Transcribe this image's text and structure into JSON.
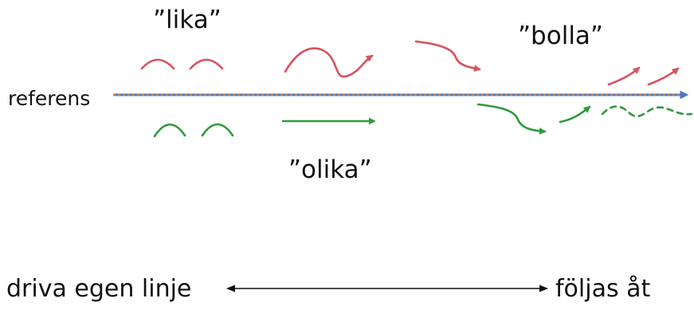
{
  "labels": {
    "lika": "”lika”",
    "bolla": "”bolla”",
    "olika": "”olika”",
    "referens": "referens",
    "driva": "driva egen linje",
    "foljas": "följas åt"
  },
  "colors": {
    "red": "#d9515e",
    "green": "#2e9a3a",
    "blue": "#4a78c8",
    "orange": "#e08a35",
    "text": "#111111"
  }
}
